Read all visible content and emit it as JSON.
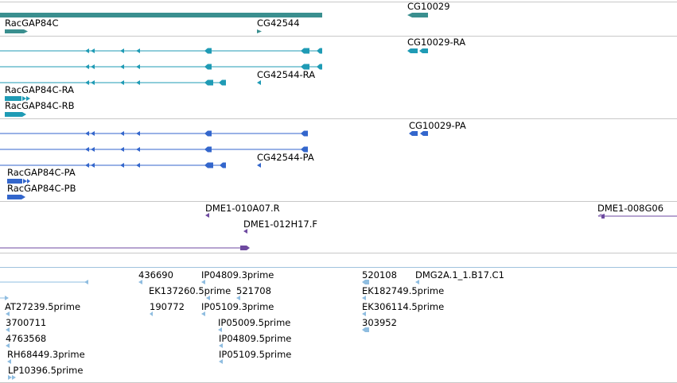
{
  "colors": {
    "gene": "#3a8f8f",
    "transcript": "#1f9bb5",
    "protein": "#3366cc",
    "clone": "#6e4aa0",
    "est": "#8fbde0",
    "divider": "#c8c8c8",
    "divider_blue": "#9fc3de"
  },
  "labels": {
    "gene_racgap": "RacGAP84C",
    "gene_cg42544": "CG42544",
    "gene_cg10029": "CG10029",
    "tx_cg10029_ra": "CG10029-RA",
    "tx_cg42544_ra": "CG42544-RA",
    "tx_racgap_ra": "RacGAP84C-RA",
    "tx_racgap_rb": "RacGAP84C-RB",
    "pr_cg10029_pa": "CG10029-PA",
    "pr_cg42544_pa": "CG42544-PA",
    "pr_racgap_pa": "RacGAP84C-PA",
    "pr_racgap_pb": "RacGAP84C-PB",
    "cl_010a07": "DME1-010A07.R",
    "cl_008g06": "DME1-008G06",
    "cl_012h17": "DME1-012H17.F",
    "est_436690": "436690",
    "est_ip04809_3": "IP04809.3prime",
    "est_520108": "520108",
    "est_dmg2a": "DMG2A.1_1.B17.C1",
    "est_ek137260": "EK137260.5prime",
    "est_521708": "521708",
    "est_ek182749": "EK182749.5prime",
    "est_at27239": "AT27239.5prime",
    "est_190772": "190772",
    "est_ip05109_3": "IP05109.3prime",
    "est_ek306114": "EK306114.5prime",
    "est_3700711": "3700711",
    "est_ip05009": "IP05009.5prime",
    "est_303952": "303952",
    "est_4763568": "4763568",
    "est_ip04809_5": "IP04809.5prime",
    "est_rh68449": "RH68449.3prime",
    "est_ip05109_5": "IP05109.5prime",
    "est_lp10396": "LP10396.5prime"
  }
}
